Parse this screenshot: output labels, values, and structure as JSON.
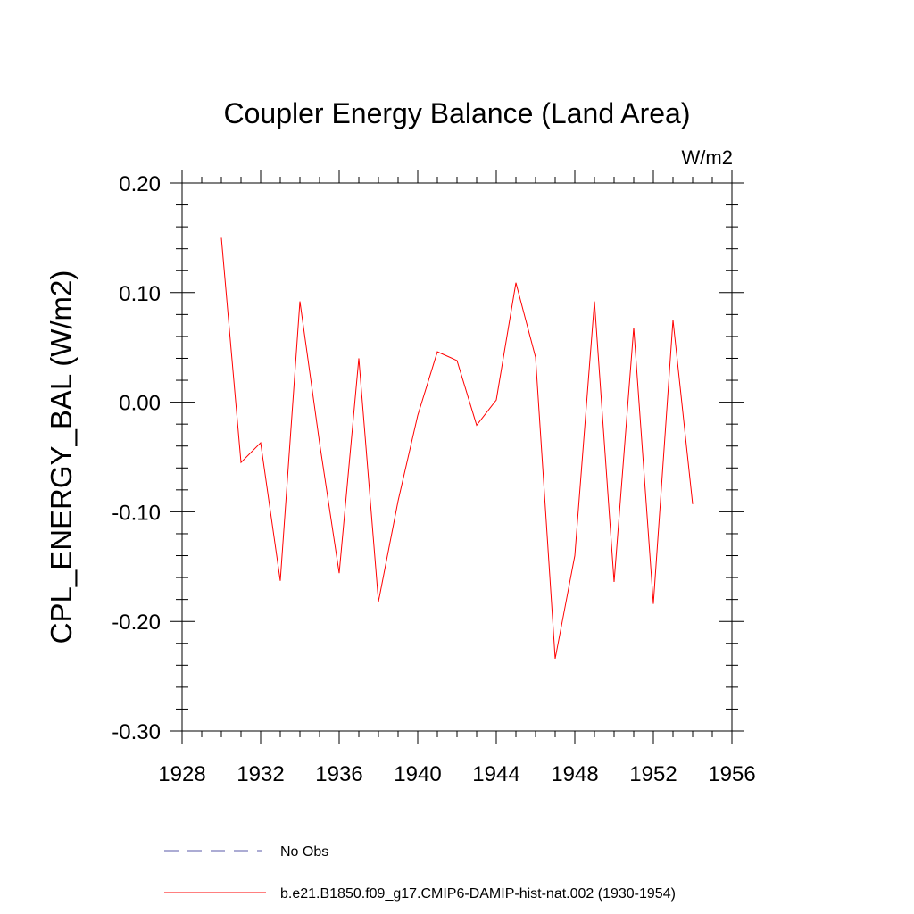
{
  "chart_data": {
    "type": "line",
    "title": "Coupler Energy Balance (Land Area)",
    "units": "W/m2",
    "ylabel": "CPL_ENERGY_BAL  (W/m2)",
    "xlim": [
      1928,
      1956
    ],
    "ylim": [
      -0.3,
      0.2
    ],
    "x_ticks": [
      1928,
      1932,
      1936,
      1940,
      1944,
      1948,
      1952,
      1956
    ],
    "x_tick_labels": [
      "1928",
      "1932",
      "1936",
      "1940",
      "1944",
      "1948",
      "1952",
      "1956"
    ],
    "y_ticks": [
      0.2,
      0.1,
      0.0,
      -0.1,
      -0.2,
      -0.3
    ],
    "y_tick_labels": [
      "0.20",
      "0.10",
      "0.00",
      "-0.10",
      "-0.20",
      "-0.30"
    ],
    "grid": false,
    "legend_position": "bottom",
    "series": [
      {
        "name": "b.e21.B1850.f09_g17.CMIP6-DAMIP-hist-nat.002 (1930-1954)",
        "color": "#ff0000",
        "style": "solid",
        "x": [
          1930,
          1931,
          1932,
          1933,
          1934,
          1935,
          1936,
          1937,
          1938,
          1939,
          1940,
          1941,
          1942,
          1943,
          1944,
          1945,
          1946,
          1947,
          1948,
          1949,
          1950,
          1951,
          1952,
          1953,
          1954
        ],
        "y": [
          0.15,
          -0.055,
          -0.037,
          -0.163,
          0.092,
          -0.037,
          -0.156,
          0.04,
          -0.182,
          -0.09,
          -0.012,
          0.046,
          0.038,
          -0.021,
          0.002,
          0.109,
          0.041,
          -0.234,
          -0.14,
          0.092,
          -0.164,
          0.068,
          -0.184,
          0.075,
          -0.093
        ]
      },
      {
        "name": "No Obs",
        "color": "#5a5aa8",
        "style": "dashed",
        "x": [],
        "y": []
      }
    ]
  }
}
